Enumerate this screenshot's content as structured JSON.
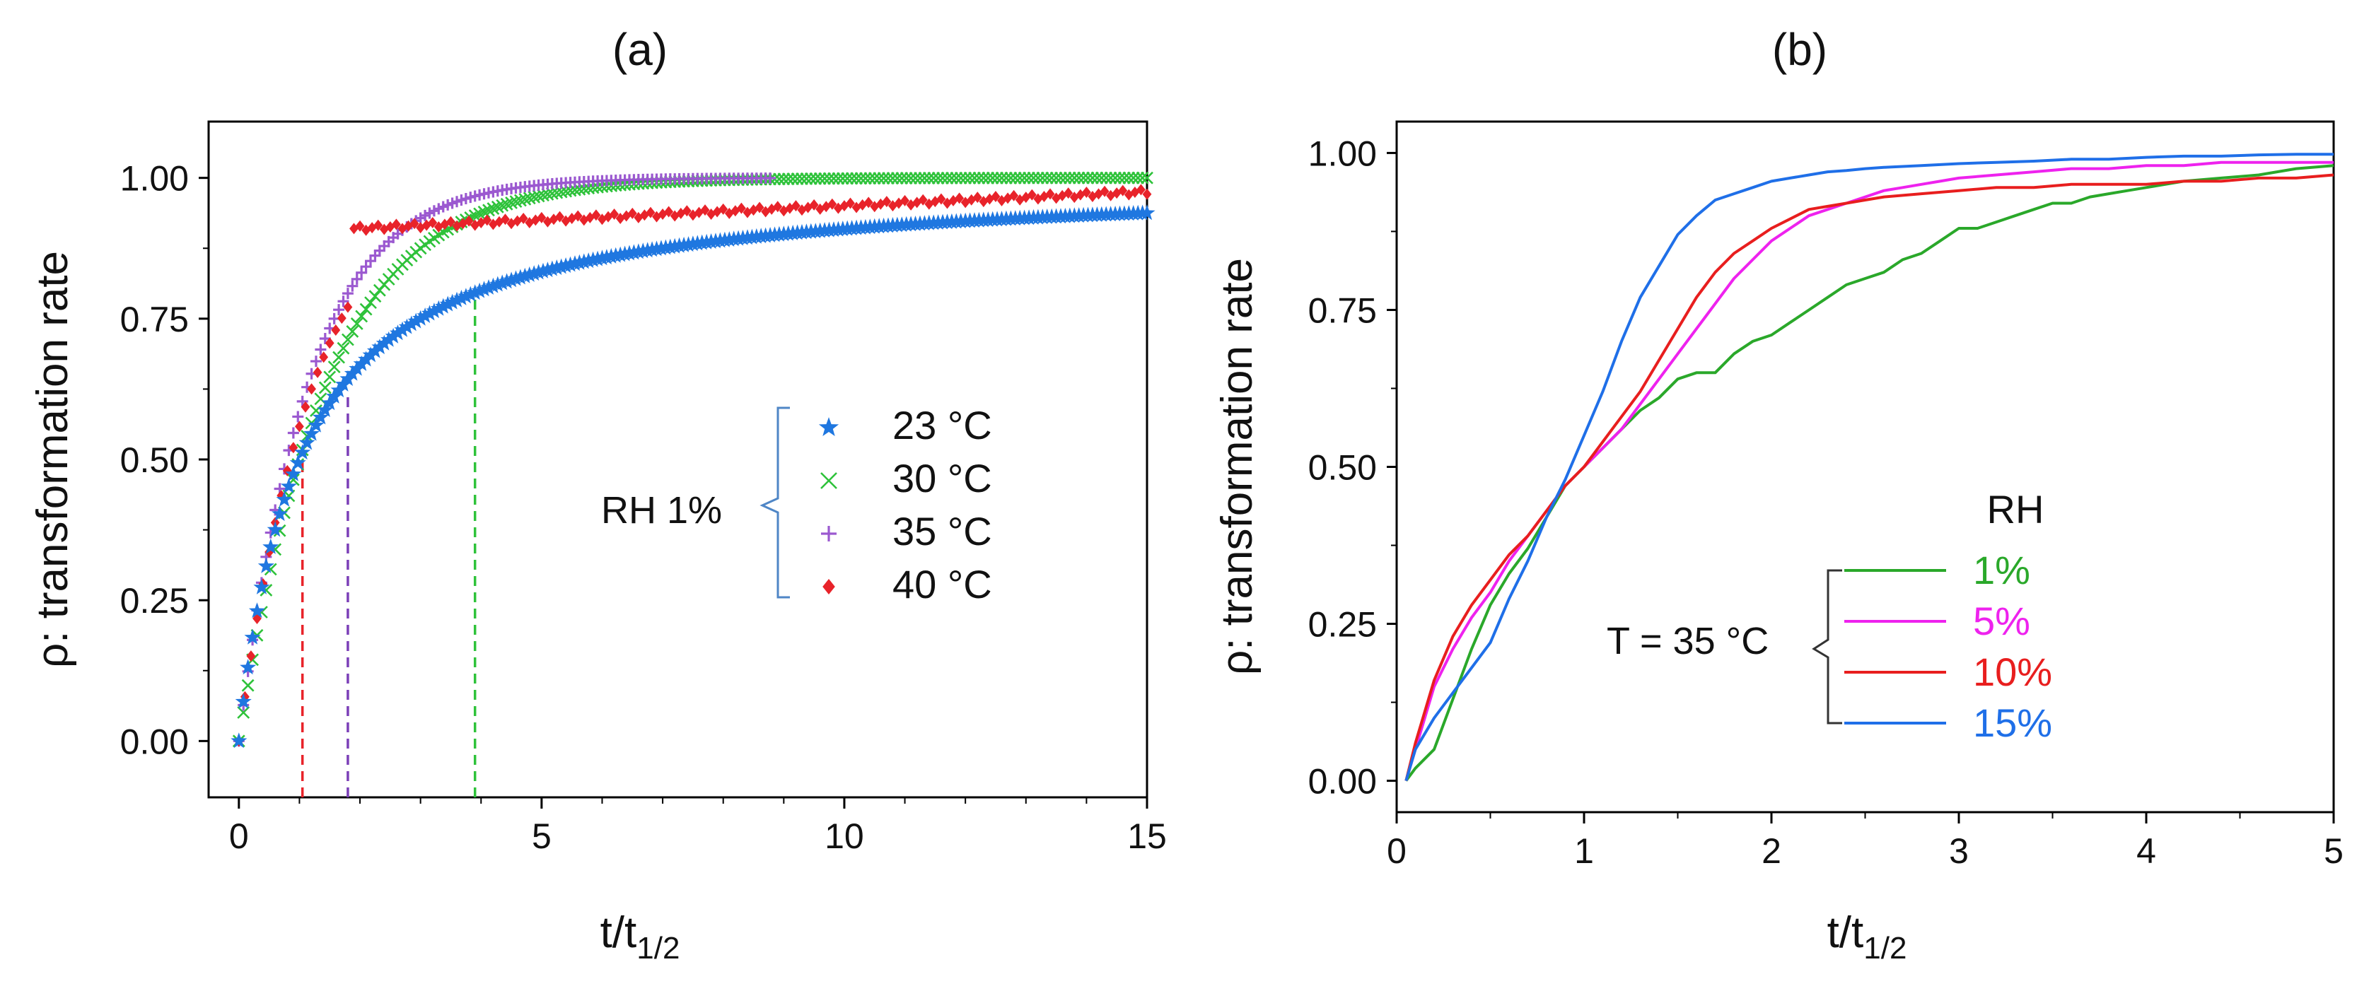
{
  "chart_data": [
    {
      "type": "scatter",
      "panel_label": "(a)",
      "xlabel_main": "t/t",
      "xlabel_sub": "1/2",
      "ylabel": "ρ: transformation rate",
      "xlim": [
        -0.5,
        15
      ],
      "ylim": [
        -0.1,
        1.1
      ],
      "xticks": [
        0,
        5,
        10,
        15
      ],
      "xtick_labels": [
        "0",
        "5",
        "10",
        "15"
      ],
      "yticks": [
        0,
        0.25,
        0.5,
        0.75,
        1.0
      ],
      "ytick_labels": [
        "0.00",
        "0.25",
        "0.50",
        "0.75",
        "1.00"
      ],
      "legend_group_label": "RH 1%",
      "series": [
        {
          "name": "23 °C",
          "color": "#1f77e0",
          "marker": "star",
          "model": "hyper",
          "k": 1.0,
          "xmax": 15
        },
        {
          "name": "30 °C",
          "color": "#2ec23a",
          "marker": "x",
          "model": "exp",
          "k": 0.693,
          "xmax": 15
        },
        {
          "name": "35 °C",
          "color": "#9b59d0",
          "marker": "plus",
          "model": "exp",
          "k": 0.88,
          "xmax": 8.8
        },
        {
          "name": "40 °C",
          "color": "#e8232a",
          "marker": "diamond",
          "model": "plateau",
          "xmax": 15
        }
      ],
      "reference_lines": [
        {
          "x": 1.05,
          "y": 0.5,
          "color": "#e8232a"
        },
        {
          "x": 1.8,
          "y": 0.62,
          "color": "#7b3fb8"
        },
        {
          "x": 3.9,
          "y": 0.8,
          "color": "#2ec23a"
        }
      ]
    },
    {
      "type": "line",
      "panel_label": "(b)",
      "xlabel_main": "t/t",
      "xlabel_sub": "1/2",
      "ylabel": "ρ: transformation rate",
      "xlim": [
        0,
        5
      ],
      "ylim": [
        -0.05,
        1.05
      ],
      "xticks": [
        0,
        1,
        2,
        3,
        4,
        5
      ],
      "xtick_labels": [
        "0",
        "1",
        "2",
        "3",
        "4",
        "5"
      ],
      "yticks": [
        0,
        0.25,
        0.5,
        0.75,
        1.0
      ],
      "ytick_labels": [
        "0.00",
        "0.25",
        "0.50",
        "0.75",
        "1.00"
      ],
      "legend_title": "RH",
      "legend_group_label": "T = 35 °C",
      "series": [
        {
          "name": "1%",
          "color": "#2aa82a",
          "x": [
            0.05,
            0.1,
            0.2,
            0.3,
            0.4,
            0.5,
            0.6,
            0.7,
            0.8,
            0.9,
            1.0,
            1.1,
            1.2,
            1.3,
            1.4,
            1.5,
            1.6,
            1.7,
            1.8,
            1.9,
            2.0,
            2.1,
            2.2,
            2.3,
            2.4,
            2.5,
            2.6,
            2.7,
            2.8,
            2.9,
            3.0,
            3.1,
            3.2,
            3.3,
            3.4,
            3.5,
            3.6,
            3.7,
            3.8,
            3.9,
            4.0,
            4.2,
            4.4,
            4.6,
            4.8,
            5.0
          ],
          "y": [
            0.0,
            0.02,
            0.05,
            0.13,
            0.21,
            0.28,
            0.33,
            0.37,
            0.42,
            0.47,
            0.5,
            0.53,
            0.56,
            0.59,
            0.61,
            0.64,
            0.65,
            0.65,
            0.68,
            0.7,
            0.71,
            0.73,
            0.75,
            0.77,
            0.79,
            0.8,
            0.81,
            0.83,
            0.84,
            0.86,
            0.88,
            0.88,
            0.89,
            0.9,
            0.91,
            0.92,
            0.92,
            0.93,
            0.935,
            0.94,
            0.945,
            0.955,
            0.96,
            0.965,
            0.975,
            0.98
          ]
        },
        {
          "name": "5%",
          "color": "#ee22ee",
          "x": [
            0.05,
            0.1,
            0.2,
            0.3,
            0.4,
            0.5,
            0.6,
            0.7,
            0.8,
            0.9,
            1.0,
            1.1,
            1.2,
            1.3,
            1.4,
            1.5,
            1.6,
            1.7,
            1.8,
            1.9,
            2.0,
            2.1,
            2.2,
            2.3,
            2.4,
            2.5,
            2.6,
            2.7,
            2.8,
            2.9,
            3.0,
            3.2,
            3.4,
            3.6,
            3.8,
            4.0,
            4.2,
            4.4,
            4.6,
            4.8,
            5.0
          ],
          "y": [
            0.0,
            0.05,
            0.15,
            0.21,
            0.26,
            0.3,
            0.35,
            0.39,
            0.43,
            0.47,
            0.5,
            0.53,
            0.56,
            0.6,
            0.64,
            0.68,
            0.72,
            0.76,
            0.8,
            0.83,
            0.86,
            0.88,
            0.9,
            0.91,
            0.92,
            0.93,
            0.94,
            0.945,
            0.95,
            0.955,
            0.96,
            0.965,
            0.97,
            0.975,
            0.975,
            0.98,
            0.98,
            0.985,
            0.985,
            0.985,
            0.985
          ]
        },
        {
          "name": "10%",
          "color": "#e81e1e",
          "x": [
            0.05,
            0.1,
            0.2,
            0.3,
            0.4,
            0.5,
            0.6,
            0.7,
            0.8,
            0.9,
            1.0,
            1.1,
            1.2,
            1.3,
            1.4,
            1.5,
            1.6,
            1.7,
            1.8,
            1.9,
            2.0,
            2.1,
            2.2,
            2.3,
            2.4,
            2.5,
            2.6,
            2.8,
            3.0,
            3.2,
            3.4,
            3.6,
            3.8,
            4.0,
            4.2,
            4.4,
            4.6,
            4.8,
            5.0
          ],
          "y": [
            0.0,
            0.06,
            0.16,
            0.23,
            0.28,
            0.32,
            0.36,
            0.39,
            0.43,
            0.47,
            0.5,
            0.54,
            0.58,
            0.62,
            0.67,
            0.72,
            0.77,
            0.81,
            0.84,
            0.86,
            0.88,
            0.895,
            0.91,
            0.915,
            0.92,
            0.925,
            0.93,
            0.935,
            0.94,
            0.945,
            0.945,
            0.95,
            0.95,
            0.95,
            0.955,
            0.955,
            0.96,
            0.96,
            0.965
          ]
        },
        {
          "name": "15%",
          "color": "#1f6fe8",
          "x": [
            0.05,
            0.1,
            0.2,
            0.3,
            0.4,
            0.5,
            0.6,
            0.7,
            0.8,
            0.9,
            1.0,
            1.1,
            1.2,
            1.3,
            1.4,
            1.5,
            1.6,
            1.7,
            1.8,
            1.9,
            2.0,
            2.1,
            2.2,
            2.3,
            2.4,
            2.5,
            2.6,
            2.8,
            3.0,
            3.2,
            3.4,
            3.6,
            3.8,
            4.0,
            4.2,
            4.4,
            4.6,
            4.8,
            5.0
          ],
          "y": [
            0.0,
            0.05,
            0.1,
            0.14,
            0.18,
            0.22,
            0.29,
            0.35,
            0.42,
            0.48,
            0.55,
            0.62,
            0.7,
            0.77,
            0.82,
            0.87,
            0.9,
            0.925,
            0.935,
            0.945,
            0.955,
            0.96,
            0.965,
            0.97,
            0.972,
            0.975,
            0.977,
            0.98,
            0.983,
            0.985,
            0.987,
            0.99,
            0.99,
            0.993,
            0.995,
            0.995,
            0.997,
            0.998,
            0.998
          ]
        }
      ]
    }
  ]
}
